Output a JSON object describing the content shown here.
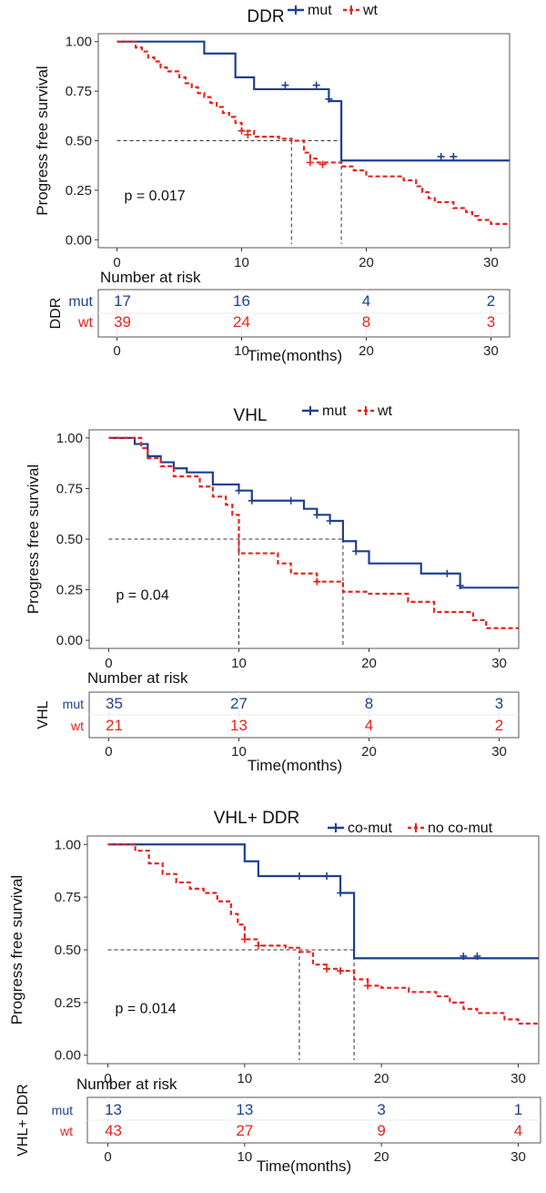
{
  "colors": {
    "mut": "#1f3f8f",
    "wt": "#e8231f",
    "axis": "#333333",
    "median": "#333333",
    "grid": "#ebebeb",
    "panel_border": "#555555"
  },
  "chart_data": [
    {
      "type": "line",
      "subtype": "kaplan-meier",
      "title": "DDR",
      "legend": [
        "mut",
        "wt"
      ],
      "ylabel": "Progress free survival",
      "xlabel": "Time(months)",
      "xlim": [
        -1.5,
        31.5
      ],
      "ylim": [
        -0.04,
        1.04
      ],
      "xticks": [
        "0",
        "10",
        "20",
        "30"
      ],
      "yticks": [
        "0.00",
        "0.25",
        "0.50",
        "0.75",
        "1.00"
      ],
      "pvalue": "p = 0.017",
      "median_lines": {
        "y": 0.5,
        "x": [
          14,
          18
        ]
      },
      "series": [
        {
          "name": "mut",
          "style": "solid",
          "steps": [
            [
              0,
              1
            ],
            [
              7,
              0.94
            ],
            [
              9.5,
              0.82
            ],
            [
              11,
              0.76
            ],
            [
              17,
              0.7
            ],
            [
              18,
              0.4
            ],
            [
              19,
              0.4
            ],
            [
              31.5,
              0.4
            ]
          ],
          "censors": [
            [
              13.5,
              0.78
            ],
            [
              16,
              0.78
            ],
            [
              17,
              0.71
            ],
            [
              26,
              0.42
            ],
            [
              27,
              0.42
            ]
          ]
        },
        {
          "name": "wt",
          "style": "dashed",
          "steps": [
            [
              0,
              1
            ],
            [
              1.5,
              0.97
            ],
            [
              2,
              0.95
            ],
            [
              2.5,
              0.92
            ],
            [
              3,
              0.9
            ],
            [
              3.5,
              0.87
            ],
            [
              4,
              0.85
            ],
            [
              5,
              0.82
            ],
            [
              5.5,
              0.79
            ],
            [
              6,
              0.77
            ],
            [
              6.5,
              0.74
            ],
            [
              7,
              0.72
            ],
            [
              7.5,
              0.69
            ],
            [
              8,
              0.67
            ],
            [
              8.5,
              0.64
            ],
            [
              9,
              0.62
            ],
            [
              9.5,
              0.59
            ],
            [
              10,
              0.55
            ],
            [
              11,
              0.52
            ],
            [
              13,
              0.51
            ],
            [
              14,
              0.5
            ],
            [
              15,
              0.44
            ],
            [
              15.5,
              0.41
            ],
            [
              16,
              0.39
            ],
            [
              18,
              0.37
            ],
            [
              19,
              0.35
            ],
            [
              20,
              0.32
            ],
            [
              23,
              0.3
            ],
            [
              24,
              0.27
            ],
            [
              24.5,
              0.24
            ],
            [
              25,
              0.21
            ],
            [
              25.5,
              0.19
            ],
            [
              27,
              0.16
            ],
            [
              28,
              0.14
            ],
            [
              28.5,
              0.12
            ],
            [
              29,
              0.1
            ],
            [
              30,
              0.08
            ],
            [
              31.5,
              0.08
            ]
          ],
          "censors": [
            [
              10,
              0.55
            ],
            [
              10.5,
              0.53
            ],
            [
              15.5,
              0.39
            ],
            [
              16.5,
              0.38
            ]
          ]
        }
      ],
      "risk_table": {
        "heading": "Number at risk",
        "group_label": "DDR",
        "xlabel": "Time(months)",
        "rows": [
          {
            "name": "mut",
            "values": [
              "17",
              "16",
              "4",
              "2"
            ]
          },
          {
            "name": "wt",
            "values": [
              "39",
              "24",
              "8",
              "3"
            ]
          }
        ]
      }
    },
    {
      "type": "line",
      "subtype": "kaplan-meier",
      "title": "VHL",
      "legend": [
        "mut",
        "wt"
      ],
      "ylabel": "Progress free survival",
      "xlabel": "Time(months)",
      "xlim": [
        -1.5,
        31.5
      ],
      "ylim": [
        -0.04,
        1.04
      ],
      "xticks": [
        "0",
        "10",
        "20",
        "30"
      ],
      "yticks": [
        "0.00",
        "0.25",
        "0.50",
        "0.75",
        "1.00"
      ],
      "pvalue": "p = 0.04",
      "median_lines": {
        "y": 0.5,
        "x": [
          10,
          18
        ]
      },
      "series": [
        {
          "name": "mut",
          "style": "solid",
          "steps": [
            [
              0,
              1
            ],
            [
              2,
              0.97
            ],
            [
              3,
              0.91
            ],
            [
              4,
              0.88
            ],
            [
              5,
              0.85
            ],
            [
              6,
              0.83
            ],
            [
              8,
              0.77
            ],
            [
              10,
              0.74
            ],
            [
              11,
              0.69
            ],
            [
              15,
              0.65
            ],
            [
              16,
              0.62
            ],
            [
              17,
              0.59
            ],
            [
              18,
              0.49
            ],
            [
              19,
              0.44
            ],
            [
              20,
              0.38
            ],
            [
              24,
              0.33
            ],
            [
              27,
              0.26
            ],
            [
              31.5,
              0.26
            ]
          ],
          "censors": [
            [
              10,
              0.74
            ],
            [
              11,
              0.69
            ],
            [
              14,
              0.69
            ],
            [
              16,
              0.62
            ],
            [
              17,
              0.59
            ],
            [
              19,
              0.44
            ],
            [
              26,
              0.33
            ],
            [
              27,
              0.27
            ]
          ]
        },
        {
          "name": "wt",
          "style": "dashed",
          "steps": [
            [
              0,
              1
            ],
            [
              2.5,
              0.95
            ],
            [
              3,
              0.9
            ],
            [
              4,
              0.86
            ],
            [
              5,
              0.81
            ],
            [
              7,
              0.76
            ],
            [
              8,
              0.71
            ],
            [
              9,
              0.67
            ],
            [
              9.5,
              0.62
            ],
            [
              10,
              0.43
            ],
            [
              13,
              0.38
            ],
            [
              14,
              0.33
            ],
            [
              16,
              0.29
            ],
            [
              18,
              0.24
            ],
            [
              20,
              0.23
            ],
            [
              23,
              0.19
            ],
            [
              25,
              0.14
            ],
            [
              28,
              0.1
            ],
            [
              29,
              0.06
            ],
            [
              31.5,
              0.06
            ]
          ],
          "censors": [
            [
              16,
              0.29
            ]
          ]
        }
      ],
      "risk_table": {
        "heading": "Number at risk",
        "group_label": "VHL",
        "xlabel": "Time(months)",
        "rows": [
          {
            "name": "mut",
            "values": [
              "35",
              "27",
              "8",
              "3"
            ]
          },
          {
            "name": "wt",
            "values": [
              "21",
              "13",
              "4",
              "2"
            ]
          }
        ]
      }
    },
    {
      "type": "line",
      "subtype": "kaplan-meier",
      "title": "VHL+ DDR",
      "legend": [
        "co-mut",
        "no co-mut"
      ],
      "ylabel": "Progress free survival",
      "xlabel": "Time(months)",
      "xlim": [
        -1.5,
        31.5
      ],
      "ylim": [
        -0.04,
        1.04
      ],
      "xticks": [
        "0",
        "10",
        "20",
        "30"
      ],
      "yticks": [
        "0.00",
        "0.25",
        "0.50",
        "0.75",
        "1.00"
      ],
      "pvalue": "p = 0.014",
      "median_lines": {
        "y": 0.5,
        "x": [
          14,
          18
        ]
      },
      "series": [
        {
          "name": "co-mut",
          "style": "solid",
          "steps": [
            [
              0,
              1
            ],
            [
              10,
              0.92
            ],
            [
              11,
              0.85
            ],
            [
              17,
              0.77
            ],
            [
              18,
              0.46
            ],
            [
              31.5,
              0.46
            ]
          ],
          "censors": [
            [
              14,
              0.85
            ],
            [
              16,
              0.85
            ],
            [
              17,
              0.77
            ],
            [
              26,
              0.47
            ],
            [
              27,
              0.47
            ]
          ]
        },
        {
          "name": "no co-mut",
          "style": "dashed",
          "steps": [
            [
              0,
              1
            ],
            [
              2,
              0.97
            ],
            [
              3,
              0.91
            ],
            [
              4,
              0.86
            ],
            [
              5,
              0.82
            ],
            [
              6,
              0.79
            ],
            [
              7,
              0.77
            ],
            [
              8,
              0.73
            ],
            [
              9,
              0.67
            ],
            [
              9.5,
              0.62
            ],
            [
              10,
              0.55
            ],
            [
              11,
              0.52
            ],
            [
              13,
              0.51
            ],
            [
              14,
              0.49
            ],
            [
              15,
              0.43
            ],
            [
              16,
              0.41
            ],
            [
              17,
              0.4
            ],
            [
              18,
              0.36
            ],
            [
              19,
              0.33
            ],
            [
              20,
              0.32
            ],
            [
              22,
              0.3
            ],
            [
              24,
              0.28
            ],
            [
              25,
              0.25
            ],
            [
              26,
              0.22
            ],
            [
              27,
              0.2
            ],
            [
              29,
              0.17
            ],
            [
              30,
              0.15
            ],
            [
              31.5,
              0.15
            ]
          ],
          "censors": [
            [
              10,
              0.55
            ],
            [
              11,
              0.52
            ],
            [
              16,
              0.41
            ],
            [
              17,
              0.4
            ],
            [
              19,
              0.33
            ]
          ]
        }
      ],
      "risk_table": {
        "heading": "Number at risk",
        "group_label": "VHL+ DDR",
        "xlabel": "Time(months)",
        "rows": [
          {
            "name": "mut",
            "values": [
              "13",
              "13",
              "3",
              "1"
            ]
          },
          {
            "name": "wt",
            "values": [
              "43",
              "27",
              "9",
              "4"
            ]
          }
        ]
      }
    }
  ]
}
